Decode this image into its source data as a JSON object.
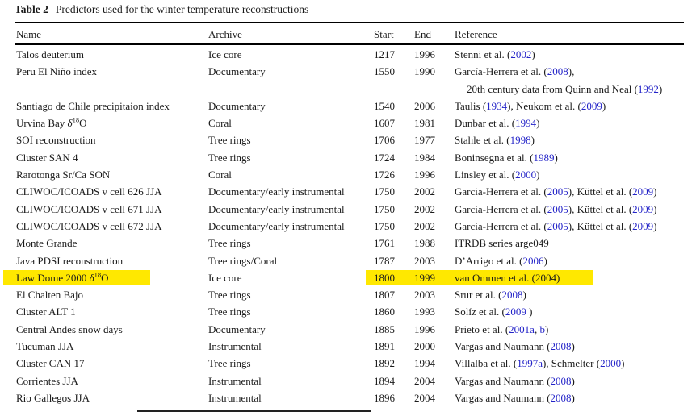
{
  "caption": {
    "label": "Table 2",
    "text": "Predictors used for the winter temperature reconstructions"
  },
  "columns": [
    "Name",
    "Archive",
    "Start",
    "End",
    "Reference"
  ],
  "colors": {
    "link": "#2323c8",
    "highlight": "#ffe800",
    "text": "#1a1a1a"
  },
  "rows": [
    {
      "name": [
        {
          "t": "Talos deuterium"
        }
      ],
      "archive": "Ice core",
      "start": "1217",
      "end": "1996",
      "ref": [
        [
          {
            "t": "Stenni et al. ("
          },
          {
            "t": "2002",
            "c": "link"
          },
          {
            "t": ")"
          }
        ]
      ]
    },
    {
      "name": [
        {
          "t": "Peru El Niño index"
        }
      ],
      "archive": "Documentary",
      "start": "1550",
      "end": "1990",
      "ref": [
        [
          {
            "t": "García-Herrera et al. ("
          },
          {
            "t": "2008",
            "c": "link"
          },
          {
            "t": "),"
          }
        ],
        [
          {
            "t": "20th century data from Quinn and Neal ("
          },
          {
            "t": "1992",
            "c": "link"
          },
          {
            "t": ")"
          }
        ]
      ]
    },
    {
      "name": [
        {
          "t": "Santiago de Chile precipitaion index"
        }
      ],
      "archive": "Documentary",
      "start": "1540",
      "end": "2006",
      "ref": [
        [
          {
            "t": "Taulis ("
          },
          {
            "t": "1934",
            "c": "link"
          },
          {
            "t": "), Neukom et al. ("
          },
          {
            "t": "2009",
            "c": "link"
          },
          {
            "t": ")"
          }
        ]
      ]
    },
    {
      "name": [
        {
          "t": "Urvina Bay "
        },
        {
          "t": "δ",
          "c": "it"
        },
        {
          "t": "18",
          "c": "sup"
        },
        {
          "t": "O"
        }
      ],
      "archive": "Coral",
      "start": "1607",
      "end": "1981",
      "ref": [
        [
          {
            "t": "Dunbar et al. ("
          },
          {
            "t": "1994",
            "c": "link"
          },
          {
            "t": ")"
          }
        ]
      ]
    },
    {
      "name": [
        {
          "t": "SOI reconstruction"
        }
      ],
      "archive": "Tree rings",
      "start": "1706",
      "end": "1977",
      "ref": [
        [
          {
            "t": "Stahle et al. ("
          },
          {
            "t": "1998",
            "c": "link"
          },
          {
            "t": ")"
          }
        ]
      ]
    },
    {
      "name": [
        {
          "t": "Cluster SAN 4"
        }
      ],
      "archive": "Tree rings",
      "start": "1724",
      "end": "1984",
      "ref": [
        [
          {
            "t": "Boninsegna et al. ("
          },
          {
            "t": "1989",
            "c": "link"
          },
          {
            "t": ")"
          }
        ]
      ]
    },
    {
      "name": [
        {
          "t": "Rarotonga Sr/Ca SON"
        }
      ],
      "archive": "Coral",
      "start": "1726",
      "end": "1996",
      "ref": [
        [
          {
            "t": "Linsley et al. ("
          },
          {
            "t": "2000",
            "c": "link"
          },
          {
            "t": ")"
          }
        ]
      ]
    },
    {
      "name": [
        {
          "t": "CLIWOC/ICOADS v cell 626 JJA"
        }
      ],
      "archive": "Documentary/early instrumental",
      "start": "1750",
      "end": "2002",
      "ref": [
        [
          {
            "t": "Garcia-Herrera et al. ("
          },
          {
            "t": "2005",
            "c": "link"
          },
          {
            "t": "), Küttel et al. ("
          },
          {
            "t": "2009",
            "c": "link"
          },
          {
            "t": ")"
          }
        ]
      ]
    },
    {
      "name": [
        {
          "t": "CLIWOC/ICOADS v cell 671 JJA"
        }
      ],
      "archive": "Documentary/early instrumental",
      "start": "1750",
      "end": "2002",
      "ref": [
        [
          {
            "t": "Garcia-Herrera et al. ("
          },
          {
            "t": "2005",
            "c": "link"
          },
          {
            "t": "), Küttel et al. ("
          },
          {
            "t": "2009",
            "c": "link"
          },
          {
            "t": ")"
          }
        ]
      ]
    },
    {
      "name": [
        {
          "t": "CLIWOC/ICOADS v cell 672 JJA"
        }
      ],
      "archive": "Documentary/early instrumental",
      "start": "1750",
      "end": "2002",
      "ref": [
        [
          {
            "t": "Garcia-Herrera et al. ("
          },
          {
            "t": "2005",
            "c": "link"
          },
          {
            "t": "), Küttel et al. ("
          },
          {
            "t": "2009",
            "c": "link"
          },
          {
            "t": ")"
          }
        ]
      ]
    },
    {
      "name": [
        {
          "t": "Monte Grande"
        }
      ],
      "archive": "Tree rings",
      "start": "1761",
      "end": "1988",
      "ref": [
        [
          {
            "t": "ITRDB series arge049"
          }
        ]
      ]
    },
    {
      "name": [
        {
          "t": "Java PDSI reconstruction"
        }
      ],
      "archive": "Tree rings/Coral",
      "start": "1787",
      "end": "2003",
      "ref": [
        [
          {
            "t": "D’Arrigo et al. ("
          },
          {
            "t": "2006",
            "c": "link"
          },
          {
            "t": ")"
          }
        ]
      ]
    },
    {
      "name": [
        {
          "t": "Law Dome 2000 "
        },
        {
          "t": "δ",
          "c": "it"
        },
        {
          "t": "18",
          "c": "sup"
        },
        {
          "t": "O"
        }
      ],
      "archive": "Ice core",
      "start": "1800",
      "end": "1999",
      "ref": [
        [
          {
            "t": "van Ommen et al. (2004)"
          }
        ]
      ],
      "highlighted": true
    },
    {
      "name": [
        {
          "t": "El Chalten Bajo"
        }
      ],
      "archive": "Tree rings",
      "start": "1807",
      "end": "2003",
      "ref": [
        [
          {
            "t": "Srur et al. ("
          },
          {
            "t": "2008",
            "c": "link"
          },
          {
            "t": ")"
          }
        ]
      ]
    },
    {
      "name": [
        {
          "t": "Cluster ALT 1"
        }
      ],
      "archive": "Tree rings",
      "start": "1860",
      "end": "1993",
      "ref": [
        [
          {
            "t": "Solíz et al. ("
          },
          {
            "t": "2009",
            "c": "link"
          },
          {
            "t": " )"
          }
        ]
      ]
    },
    {
      "name": [
        {
          "t": "Central Andes snow days"
        }
      ],
      "archive": "Documentary",
      "start": "1885",
      "end": "1996",
      "ref": [
        [
          {
            "t": "Prieto et al. ("
          },
          {
            "t": "2001a",
            "c": "link"
          },
          {
            "t": ", "
          },
          {
            "t": "b",
            "c": "link"
          },
          {
            "t": ")"
          }
        ]
      ]
    },
    {
      "name": [
        {
          "t": "Tucuman JJA"
        }
      ],
      "archive": "Instrumental",
      "start": "1891",
      "end": "2000",
      "ref": [
        [
          {
            "t": "Vargas and Naumann ("
          },
          {
            "t": "2008",
            "c": "link"
          },
          {
            "t": ")"
          }
        ]
      ]
    },
    {
      "name": [
        {
          "t": "Cluster CAN 17"
        }
      ],
      "archive": "Tree rings",
      "start": "1892",
      "end": "1994",
      "ref": [
        [
          {
            "t": "Villalba et al. ("
          },
          {
            "t": "1997a",
            "c": "link"
          },
          {
            "t": "), Schmelter ("
          },
          {
            "t": "2000",
            "c": "link"
          },
          {
            "t": ")"
          }
        ]
      ]
    },
    {
      "name": [
        {
          "t": "Corrientes JJA"
        }
      ],
      "archive": "Instrumental",
      "start": "1894",
      "end": "2004",
      "ref": [
        [
          {
            "t": "Vargas and Naumann ("
          },
          {
            "t": "2008",
            "c": "link"
          },
          {
            "t": ")"
          }
        ]
      ]
    },
    {
      "name": [
        {
          "t": "Rio Gallegos JJA"
        }
      ],
      "archive": "Instrumental",
      "start": "1896",
      "end": "2004",
      "ref": [
        [
          {
            "t": "Vargas and Naumann ("
          },
          {
            "t": "2008",
            "c": "link"
          },
          {
            "t": ")"
          }
        ]
      ]
    }
  ]
}
